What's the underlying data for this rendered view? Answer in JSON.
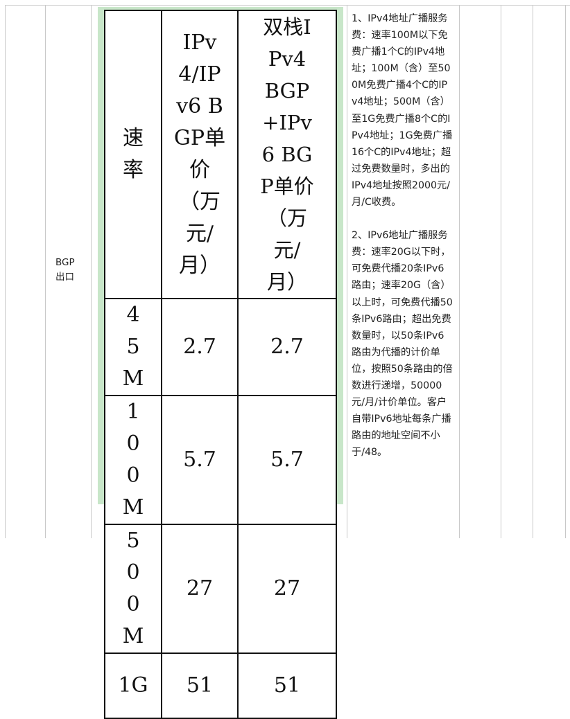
{
  "row_label": "BGP\n出口",
  "row_label_lines": [
    "BGP",
    "出口"
  ],
  "price_table": {
    "headers": {
      "rate": "速率",
      "col1": "IPv4/IPv6 BGP单价（万元/月）",
      "col2": "双栈IPv4 BGP+IPv6 BGP单价（万元/月）"
    },
    "rows": [
      {
        "rate": "45M",
        "col1": "2.7",
        "col2": "2.7"
      },
      {
        "rate": "100M",
        "col1": "5.7",
        "col2": "5.7"
      },
      {
        "rate": "500M",
        "col1": "27",
        "col2": "27"
      },
      {
        "rate": "1G",
        "col1": "51",
        "col2": "51"
      }
    ]
  },
  "notes": {
    "note1": "1、IPv4地址广播服务费：速率100M以下免费广播1个C的IPv4地址；100M（含）至500M免费广播4个C的IPv4地址；500M（含）至1G免费广播8个C的IPv4地址；1G免费广播16个C的IPv4地址；超过免费数量时，多出的IPv4地址按照2000元/月/C收费。",
    "note2": "2、IPv6地址广播服务费：速率20G以下时，可免费代播20条IPv6路由；速率20G（含）以上时，可免费代播50条IPv6路由；超出免费数量时，以50条IPv6路由为代播的计价单位，按照50条路由的倍数进行递增，50000元/月/计价单位。客户自带IPv6地址每条广播路由的地址空间不小于/48。"
  }
}
